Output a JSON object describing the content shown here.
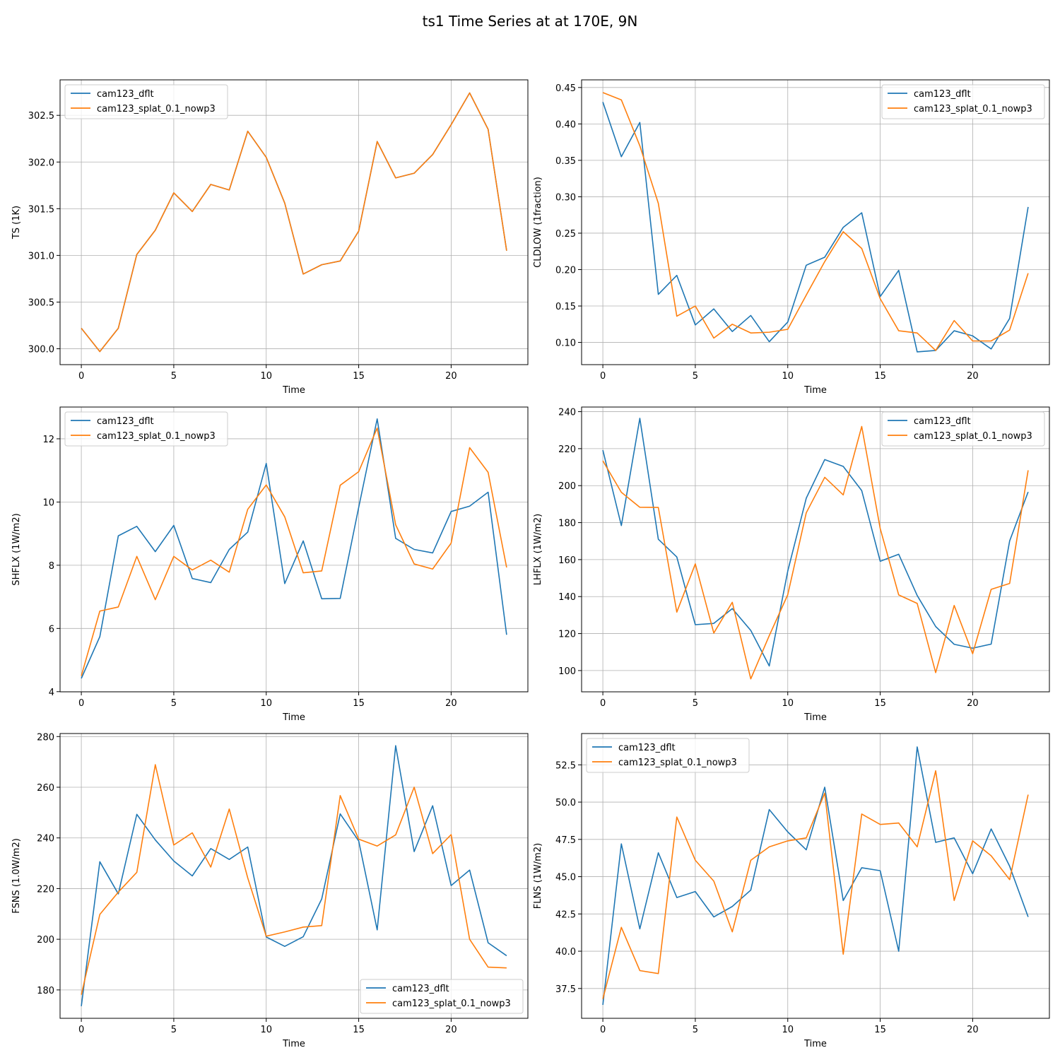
{
  "figure": {
    "title": "ts1 Time Series at at 170E, 9N"
  },
  "colors": {
    "series_1": "#1f77b4",
    "series_2": "#ff7f0e"
  },
  "chart_data": [
    {
      "type": "line",
      "xlabel": "Time",
      "ylabel": "TS (1K)",
      "xlim": [
        -1.15,
        24.15
      ],
      "ylim": [
        299.83,
        302.88
      ],
      "xticks": [
        0,
        5,
        10,
        15,
        20
      ],
      "yticks": [
        300.0,
        300.5,
        301.0,
        301.5,
        302.0,
        302.5
      ],
      "ytick_labels": [
        "300.0",
        "300.5",
        "301.0",
        "301.5",
        "302.0",
        "302.5"
      ],
      "grid": true,
      "legend": "top-left",
      "series": [
        {
          "name": "cam123_dflt",
          "color": "#1f77b4",
          "x": [
            0,
            1,
            2,
            3,
            4,
            5,
            6,
            7,
            8,
            9,
            10,
            11,
            12,
            13,
            14,
            15,
            16,
            17,
            18,
            19,
            20,
            21,
            22,
            23
          ],
          "values": [
            300.22,
            299.97,
            300.22,
            301.01,
            301.27,
            301.67,
            301.47,
            301.76,
            301.7,
            302.33,
            302.05,
            301.56,
            300.8,
            300.9,
            300.94,
            301.26,
            302.22,
            301.83,
            301.88,
            302.08,
            302.4,
            302.74,
            302.35,
            301.05
          ]
        },
        {
          "name": "cam123_splat_0.1_nowp3",
          "color": "#ff7f0e",
          "x": [
            0,
            1,
            2,
            3,
            4,
            5,
            6,
            7,
            8,
            9,
            10,
            11,
            12,
            13,
            14,
            15,
            16,
            17,
            18,
            19,
            20,
            21,
            22,
            23
          ],
          "values": [
            300.22,
            299.97,
            300.22,
            301.01,
            301.27,
            301.67,
            301.47,
            301.76,
            301.7,
            302.33,
            302.05,
            301.56,
            300.8,
            300.9,
            300.94,
            301.26,
            302.22,
            301.83,
            301.88,
            302.08,
            302.4,
            302.74,
            302.35,
            301.05
          ]
        }
      ]
    },
    {
      "type": "line",
      "xlabel": "Time",
      "ylabel": "CLDLOW (1fraction)",
      "xlim": [
        -1.15,
        24.15
      ],
      "ylim": [
        0.0695,
        0.4605
      ],
      "xticks": [
        0,
        5,
        10,
        15,
        20
      ],
      "yticks": [
        0.1,
        0.15,
        0.2,
        0.25,
        0.3,
        0.35,
        0.4,
        0.45
      ],
      "ytick_labels": [
        "0.10",
        "0.15",
        "0.20",
        "0.25",
        "0.30",
        "0.35",
        "0.40",
        "0.45"
      ],
      "grid": true,
      "legend": "top-right",
      "series": [
        {
          "name": "cam123_dflt",
          "color": "#1f77b4",
          "x": [
            0,
            1,
            2,
            3,
            4,
            5,
            6,
            7,
            8,
            9,
            10,
            11,
            12,
            13,
            14,
            15,
            16,
            17,
            18,
            19,
            20,
            21,
            22,
            23
          ],
          "values": [
            0.43,
            0.355,
            0.402,
            0.166,
            0.192,
            0.124,
            0.146,
            0.115,
            0.137,
            0.101,
            0.128,
            0.206,
            0.217,
            0.258,
            0.278,
            0.163,
            0.199,
            0.087,
            0.089,
            0.116,
            0.109,
            0.091,
            0.133,
            0.286
          ]
        },
        {
          "name": "cam123_splat_0.1_nowp3",
          "color": "#ff7f0e",
          "x": [
            0,
            1,
            2,
            3,
            4,
            5,
            6,
            7,
            8,
            9,
            10,
            11,
            12,
            13,
            14,
            15,
            16,
            17,
            18,
            19,
            20,
            21,
            22,
            23
          ],
          "values": [
            0.443,
            0.433,
            0.37,
            0.291,
            0.136,
            0.15,
            0.106,
            0.125,
            0.113,
            0.114,
            0.118,
            0.165,
            0.211,
            0.252,
            0.229,
            0.16,
            0.116,
            0.113,
            0.089,
            0.13,
            0.102,
            0.102,
            0.117,
            0.195
          ]
        }
      ]
    },
    {
      "type": "line",
      "xlabel": "Time",
      "ylabel": "SHFLX (1W/m2)",
      "xlim": [
        -1.15,
        24.15
      ],
      "ylim": [
        3.995,
        13.005
      ],
      "xticks": [
        0,
        5,
        10,
        15,
        20
      ],
      "yticks": [
        4,
        6,
        8,
        10,
        12
      ],
      "ytick_labels": [
        "4",
        "6",
        "8",
        "10",
        "12"
      ],
      "grid": true,
      "legend": "top-left",
      "series": [
        {
          "name": "cam123_dflt",
          "color": "#1f77b4",
          "x": [
            0,
            1,
            2,
            3,
            4,
            5,
            6,
            7,
            8,
            9,
            10,
            11,
            12,
            13,
            14,
            15,
            16,
            17,
            18,
            19,
            20,
            21,
            22,
            23
          ],
          "values": [
            4.42,
            5.74,
            8.93,
            9.23,
            8.43,
            9.26,
            7.58,
            7.45,
            8.5,
            9.05,
            11.22,
            7.42,
            8.77,
            6.94,
            6.95,
            9.83,
            12.63,
            8.85,
            8.5,
            8.39,
            9.7,
            9.87,
            10.31,
            5.8
          ]
        },
        {
          "name": "cam123_splat_0.1_nowp3",
          "color": "#ff7f0e",
          "x": [
            0,
            1,
            2,
            3,
            4,
            5,
            6,
            7,
            8,
            9,
            10,
            11,
            12,
            13,
            14,
            15,
            16,
            17,
            18,
            19,
            20,
            21,
            22,
            23
          ],
          "values": [
            4.5,
            6.55,
            6.68,
            8.28,
            6.91,
            8.28,
            7.85,
            8.16,
            7.78,
            9.77,
            10.54,
            9.53,
            7.76,
            7.82,
            10.53,
            10.96,
            12.34,
            9.28,
            8.04,
            7.88,
            8.7,
            11.72,
            10.94,
            7.93
          ]
        }
      ]
    },
    {
      "type": "line",
      "xlabel": "Time",
      "ylabel": "LHFLX (1W/m2)",
      "xlim": [
        -1.15,
        24.15
      ],
      "ylim": [
        88.5,
        242.5
      ],
      "xticks": [
        0,
        5,
        10,
        15,
        20
      ],
      "yticks": [
        100,
        120,
        140,
        160,
        180,
        200,
        220,
        240
      ],
      "ytick_labels": [
        "100",
        "120",
        "140",
        "160",
        "180",
        "200",
        "220",
        "240"
      ],
      "grid": true,
      "legend": "top-right",
      "series": [
        {
          "name": "cam123_dflt",
          "color": "#1f77b4",
          "x": [
            0,
            1,
            2,
            3,
            4,
            5,
            6,
            7,
            8,
            9,
            10,
            11,
            12,
            13,
            14,
            15,
            16,
            17,
            18,
            19,
            20,
            21,
            22,
            23
          ],
          "values": [
            219.2,
            178.4,
            236.4,
            171.0,
            161.4,
            124.8,
            125.5,
            133.5,
            121.7,
            102.5,
            153.8,
            193.2,
            214.1,
            210.4,
            197.3,
            159.1,
            162.9,
            140.6,
            123.8,
            114.2,
            112.1,
            114.3,
            170.1,
            196.6
          ]
        },
        {
          "name": "cam123_splat_0.1_nowp3",
          "color": "#ff7f0e",
          "x": [
            0,
            1,
            2,
            3,
            4,
            5,
            6,
            7,
            8,
            9,
            10,
            11,
            12,
            13,
            14,
            15,
            16,
            17,
            18,
            19,
            20,
            21,
            22,
            23
          ],
          "values": [
            213.4,
            196.4,
            188.3,
            188.2,
            131.6,
            157.7,
            120.3,
            136.9,
            95.5,
            118.9,
            141.0,
            185.3,
            204.5,
            195.0,
            232.0,
            176.8,
            140.9,
            136.3,
            98.9,
            135.2,
            109.1,
            143.9,
            147.1,
            208.3
          ]
        }
      ]
    },
    {
      "type": "line",
      "xlabel": "Time",
      "ylabel": "FSNS (1.0W/m2)",
      "xlim": [
        -1.15,
        24.15
      ],
      "ylim": [
        168.8,
        281.2
      ],
      "xticks": [
        0,
        5,
        10,
        15,
        20
      ],
      "yticks": [
        180,
        200,
        220,
        240,
        260,
        280
      ],
      "ytick_labels": [
        "180",
        "200",
        "220",
        "240",
        "260",
        "280"
      ],
      "grid": true,
      "legend": "bottom-right",
      "series": [
        {
          "name": "cam123_dflt",
          "color": "#1f77b4",
          "x": [
            0,
            1,
            2,
            3,
            4,
            5,
            6,
            7,
            8,
            9,
            10,
            11,
            12,
            13,
            14,
            15,
            16,
            17,
            18,
            19,
            20,
            21,
            22,
            23
          ],
          "values": [
            173.6,
            230.6,
            217.9,
            249.3,
            239.2,
            230.9,
            225.0,
            235.8,
            231.5,
            236.4,
            200.9,
            197.2,
            201.0,
            215.9,
            249.5,
            238.8,
            203.7,
            276.4,
            234.6,
            252.7,
            221.2,
            227.3,
            198.6,
            193.5
          ]
        },
        {
          "name": "cam123_splat_0.1_nowp3",
          "color": "#ff7f0e",
          "x": [
            0,
            1,
            2,
            3,
            4,
            5,
            6,
            7,
            8,
            9,
            10,
            11,
            12,
            13,
            14,
            15,
            16,
            17,
            18,
            19,
            20,
            21,
            22,
            23
          ],
          "values": [
            178.1,
            209.8,
            218.6,
            226.4,
            268.9,
            237.2,
            242.0,
            228.5,
            251.4,
            224.2,
            201.2,
            202.9,
            204.8,
            205.4,
            256.7,
            239.5,
            236.8,
            241.2,
            260.0,
            233.8,
            241.3,
            200.0,
            189.0,
            188.7
          ]
        }
      ]
    },
    {
      "type": "line",
      "xlabel": "Time",
      "ylabel": "FLNS (1W/m2)",
      "xlim": [
        -1.15,
        24.15
      ],
      "ylim": [
        35.5,
        54.6
      ],
      "xticks": [
        0,
        5,
        10,
        15,
        20
      ],
      "yticks": [
        37.5,
        40.0,
        42.5,
        45.0,
        47.5,
        50.0,
        52.5
      ],
      "ytick_labels": [
        "37.5",
        "40.0",
        "42.5",
        "45.0",
        "47.5",
        "50.0",
        "52.5"
      ],
      "grid": true,
      "legend": "top-left",
      "series": [
        {
          "name": "cam123_dflt",
          "color": "#1f77b4",
          "x": [
            0,
            1,
            2,
            3,
            4,
            5,
            6,
            7,
            8,
            9,
            10,
            11,
            12,
            13,
            14,
            15,
            16,
            17,
            18,
            19,
            20,
            21,
            22,
            23
          ],
          "values": [
            36.4,
            47.2,
            41.5,
            46.6,
            43.6,
            44.0,
            42.3,
            43.0,
            44.1,
            49.5,
            48.0,
            46.8,
            51.0,
            43.4,
            45.6,
            45.4,
            40.0,
            53.7,
            47.3,
            47.6,
            45.2,
            48.2,
            45.7,
            42.3
          ]
        },
        {
          "name": "cam123_splat_0.1_nowp3",
          "color": "#ff7f0e",
          "x": [
            0,
            1,
            2,
            3,
            4,
            5,
            6,
            7,
            8,
            9,
            10,
            11,
            12,
            13,
            14,
            15,
            16,
            17,
            18,
            19,
            20,
            21,
            22,
            23
          ],
          "values": [
            36.8,
            41.6,
            38.7,
            38.5,
            49.0,
            46.1,
            44.7,
            41.3,
            46.1,
            47.0,
            47.4,
            47.6,
            50.6,
            39.8,
            49.2,
            48.5,
            48.6,
            47.0,
            52.1,
            43.4,
            47.4,
            46.4,
            44.8,
            50.5
          ]
        }
      ]
    }
  ]
}
